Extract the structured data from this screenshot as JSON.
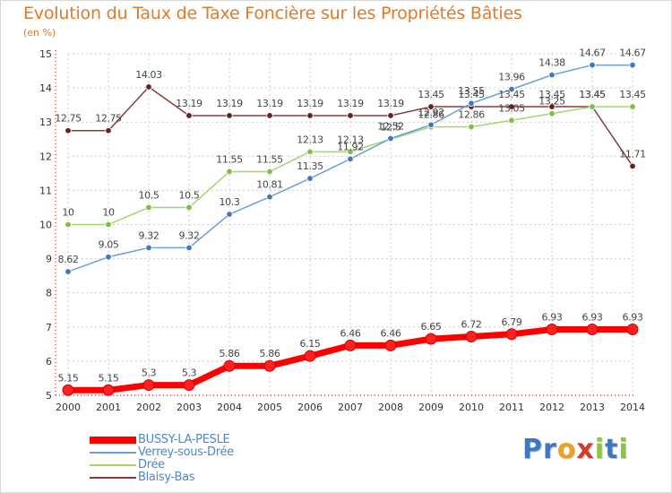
{
  "title": "Evolution du Taux de Taxe Foncière sur les Propriétés Bâties",
  "subtitle": "(en %)",
  "colors": {
    "title": "#e07a2a",
    "axis": "#c00000",
    "grid": "#cccccc",
    "label": "#333333",
    "legend_text": "#4f87c8"
  },
  "logo": {
    "letters": [
      {
        "ch": "P",
        "color": "#3f78c0"
      },
      {
        "ch": "r",
        "color": "#3f78c0"
      },
      {
        "ch": "o",
        "color": "#e7a321"
      },
      {
        "ch": "x",
        "color": "#d23a2a"
      },
      {
        "ch": "i",
        "color": "#8cc63f"
      },
      {
        "ch": "t",
        "color": "#3f78c0"
      },
      {
        "ch": "i",
        "color": "#8cc63f"
      }
    ]
  },
  "chart_data": {
    "type": "line",
    "title": "Evolution du Taux de Taxe Foncière sur les Propriétés Bâties",
    "subtitle": "(en %)",
    "xlabel": "",
    "ylabel": "",
    "x": [
      "2000",
      "2001",
      "2002",
      "2003",
      "2004",
      "2005",
      "2006",
      "2007",
      "2008",
      "2009",
      "2010",
      "2011",
      "2012",
      "2013",
      "2014"
    ],
    "ylim": [
      5,
      15
    ],
    "yticks": [
      "5",
      "6",
      "7",
      "8",
      "9",
      "10",
      "11",
      "12",
      "13",
      "14",
      "15"
    ],
    "grid": true,
    "legend_position": "bottom-left",
    "series": [
      {
        "name": "BUSSY-LA-PESLE",
        "color": "#ff0000",
        "marker_fill": "#ff2020",
        "style": "thick",
        "values": [
          5.15,
          5.15,
          5.3,
          5.3,
          5.86,
          5.86,
          6.15,
          6.46,
          6.46,
          6.65,
          6.72,
          6.79,
          6.93,
          6.93,
          6.93
        ],
        "labels": [
          "5.15",
          "5.15",
          "5.3",
          "5.3",
          "5.86",
          "5.86",
          "6.15",
          "6.46",
          "6.46",
          "6.65",
          "6.72",
          "6.79",
          "6.93",
          "6.93",
          "6.93"
        ]
      },
      {
        "name": "Verrey-sous-Drée",
        "color": "#6e9fd2",
        "marker_fill": "#3f78c0",
        "style": "thin",
        "values": [
          8.62,
          9.05,
          9.32,
          9.32,
          10.3,
          10.81,
          11.35,
          11.92,
          12.52,
          12.92,
          13.55,
          13.96,
          14.38,
          14.67,
          14.67
        ],
        "labels": [
          "8.62",
          "9.05",
          "9.32",
          "9.32",
          "10.3",
          "10.81",
          "11.35",
          "11.92",
          "12.52",
          "12.92",
          "13.55",
          "13.96",
          "14.38",
          "14.67",
          "14.67"
        ]
      },
      {
        "name": "Drée",
        "color": "#9fd86a",
        "marker_fill": "#7ac143",
        "style": "thin",
        "values": [
          10,
          10,
          10.5,
          10.5,
          11.55,
          11.55,
          12.13,
          12.13,
          12.5,
          12.86,
          12.86,
          13.05,
          13.25,
          13.45,
          13.45
        ],
        "labels": [
          "10",
          "10",
          "10.5",
          "10.5",
          "11.55",
          "11.55",
          "12.13",
          "12.13",
          "12.5",
          "12.86",
          "12.86",
          "13.05",
          "13.25",
          "13.45",
          "13.45"
        ]
      },
      {
        "name": "Blaisy-Bas",
        "color": "#8b3a3a",
        "marker_fill": "#6b2020",
        "style": "thin",
        "values": [
          12.75,
          12.75,
          14.03,
          13.19,
          13.19,
          13.19,
          13.19,
          13.19,
          13.19,
          13.45,
          13.45,
          13.45,
          13.45,
          13.45,
          11.71
        ],
        "labels": [
          "12.75",
          "12.75",
          "14.03",
          "13.19",
          "13.19",
          "13.19",
          "13.19",
          "13.19",
          "13.19",
          "13.45",
          "13.45",
          "13.45",
          "13.45",
          "13.45",
          "11.71"
        ]
      }
    ]
  }
}
